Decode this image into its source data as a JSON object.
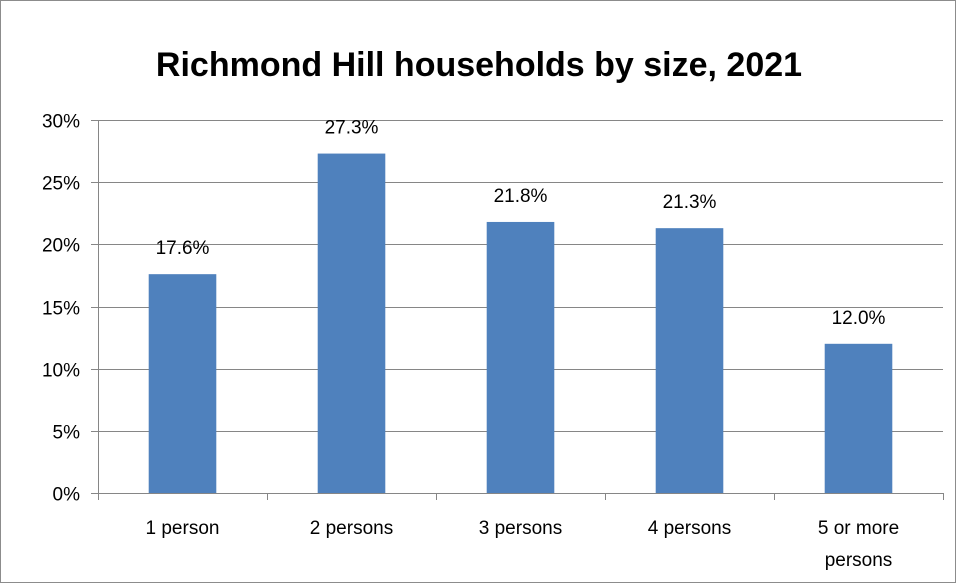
{
  "chart_data": {
    "type": "bar",
    "title": "Richmond Hill households by size, 2021",
    "xlabel": "",
    "ylabel": "",
    "categories": [
      "1 person",
      "2 persons",
      "3 persons",
      "4 persons",
      "5 or more persons"
    ],
    "category_lines": [
      [
        "1 person"
      ],
      [
        "2 persons"
      ],
      [
        "3 persons"
      ],
      [
        "4 persons"
      ],
      [
        "5 or more",
        "persons"
      ]
    ],
    "values": [
      17.6,
      27.3,
      21.8,
      21.3,
      12.0
    ],
    "data_labels": [
      "17.6%",
      "27.3%",
      "21.8%",
      "21.3%",
      "12.0%"
    ],
    "ylim": [
      0,
      30
    ],
    "yticks": [
      0,
      5,
      10,
      15,
      20,
      25,
      30
    ],
    "ytick_labels": [
      "0%",
      "5%",
      "10%",
      "15%",
      "20%",
      "25%",
      "30%"
    ],
    "grid": true,
    "legend": "none",
    "bar_color": "#4f81bd",
    "grid_color": "#868686"
  }
}
